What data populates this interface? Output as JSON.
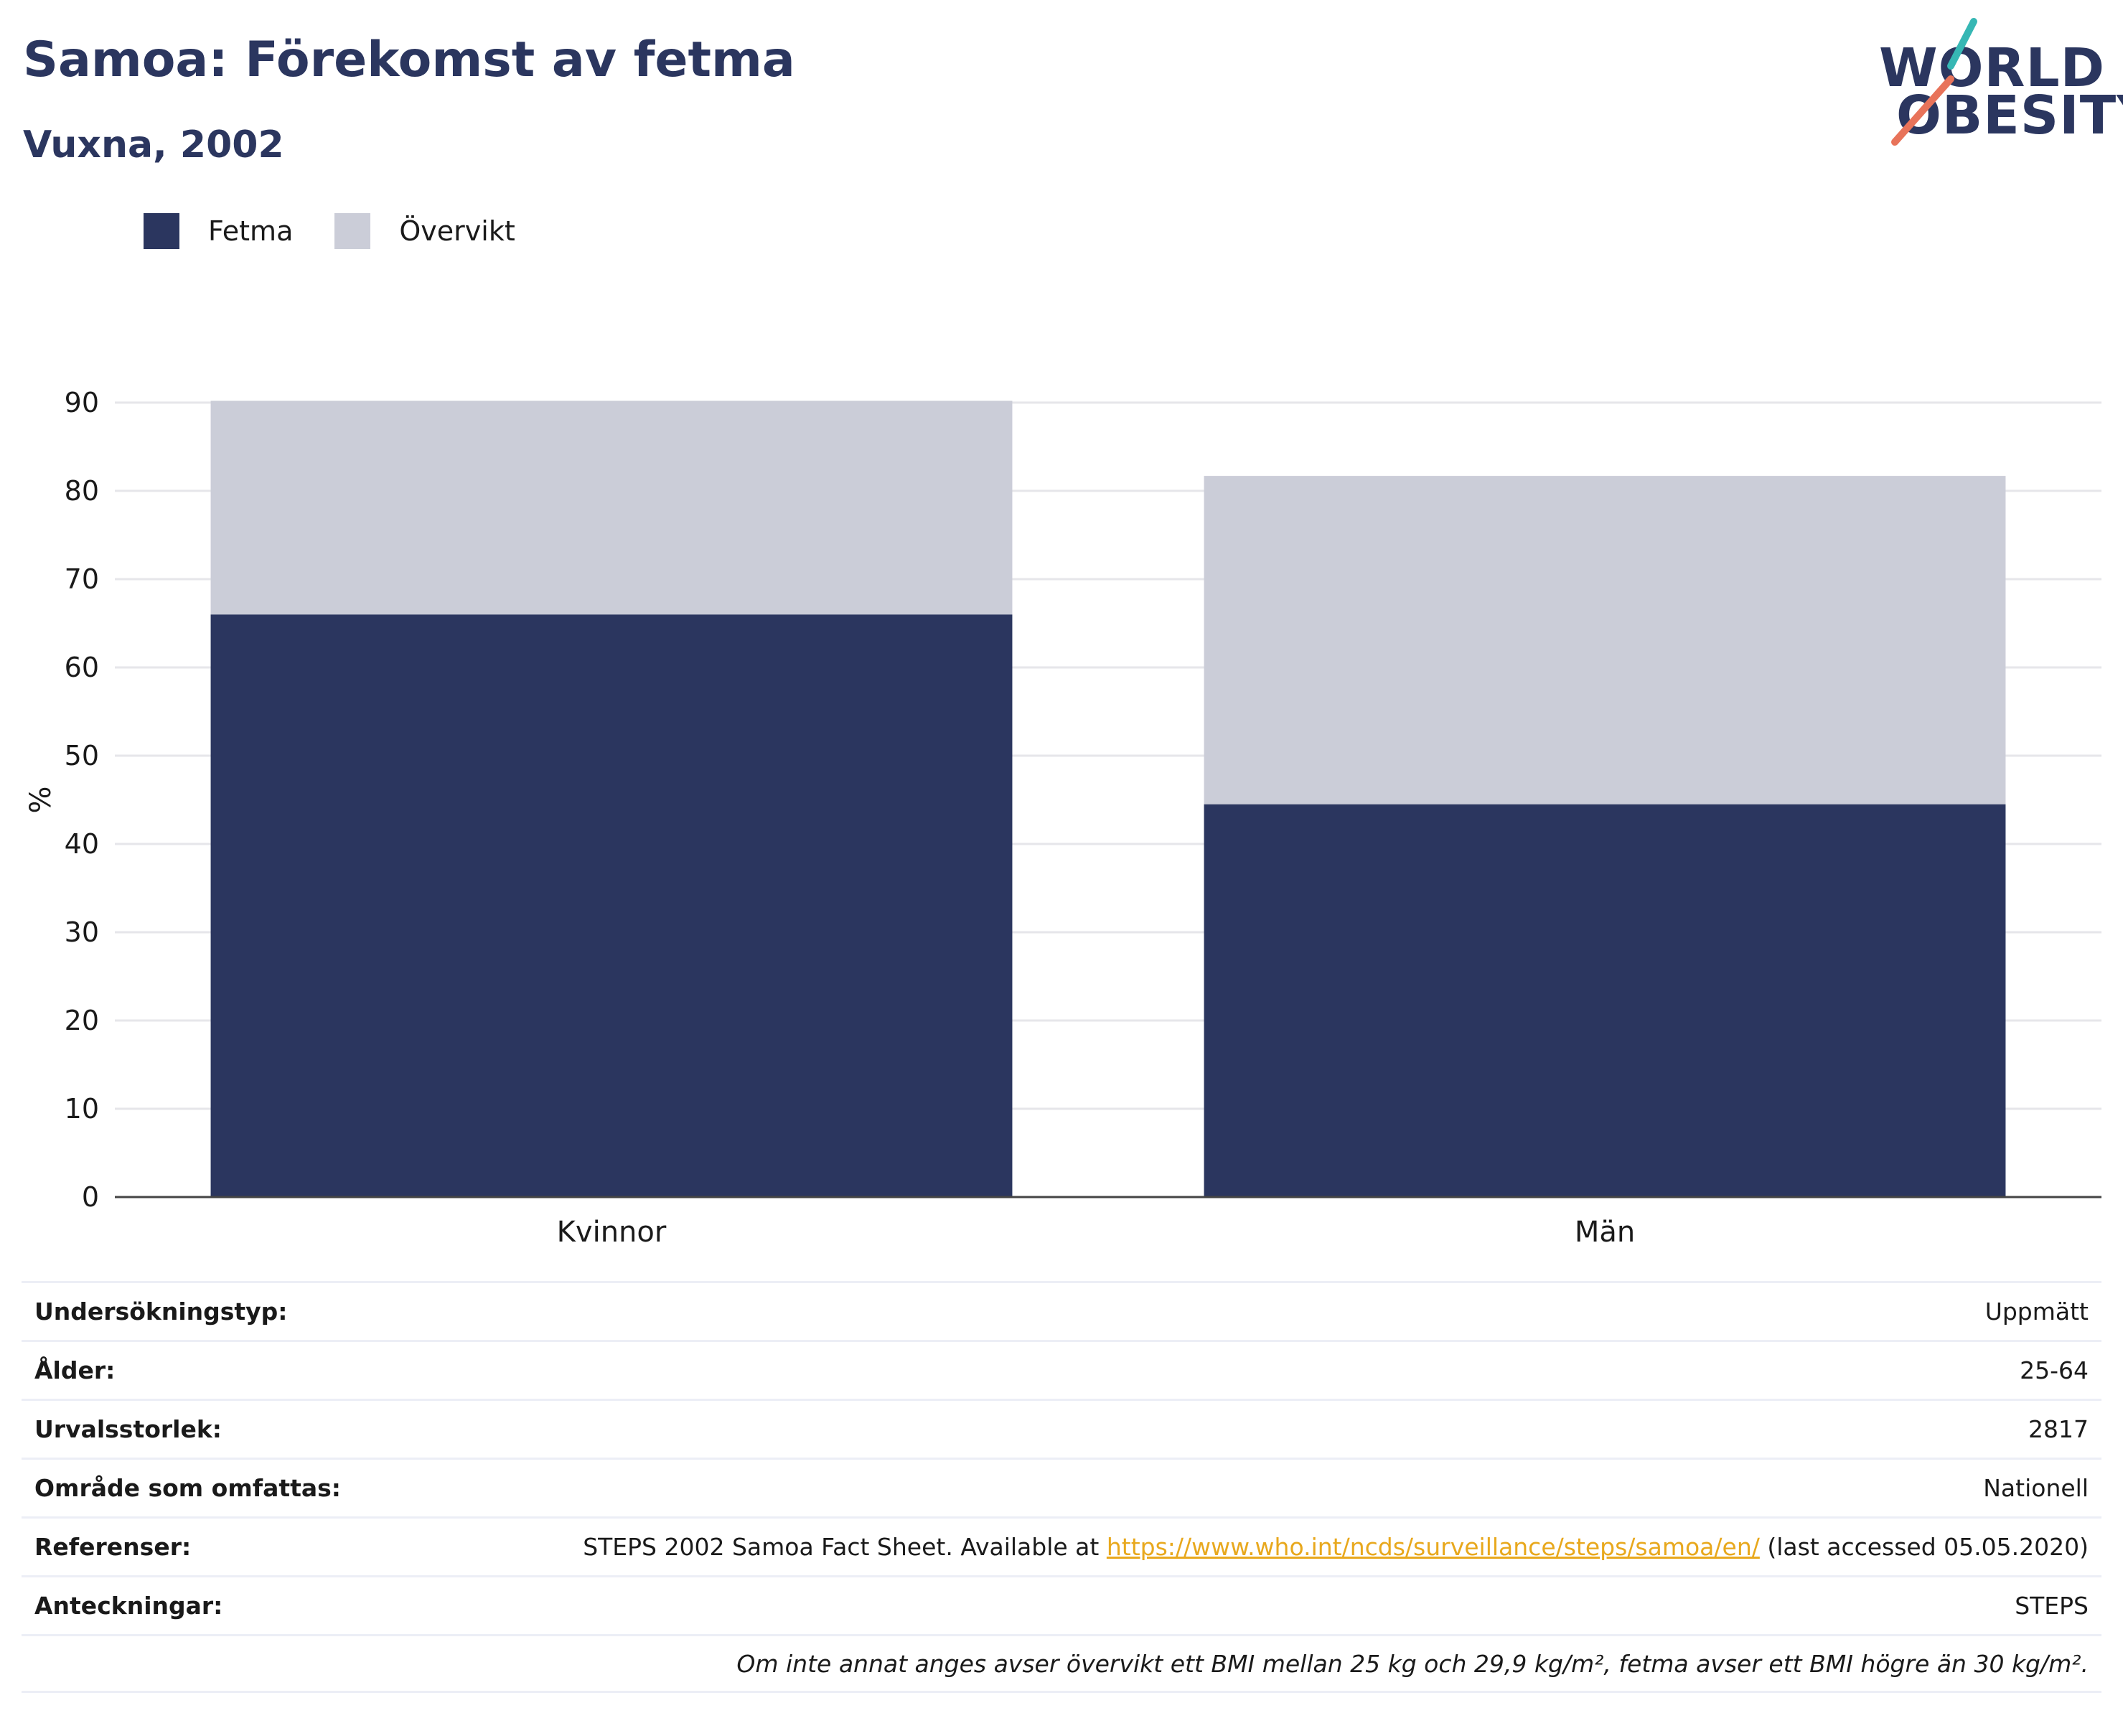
{
  "header": {
    "title": "Samoa: Förekomst av fetma",
    "subtitle": "Vuxna, 2002"
  },
  "logo": {
    "line1": "WORLD",
    "line2": "OBESITY",
    "colors": {
      "text": "#2b365f",
      "slash_top": "#36b7b4",
      "slash_bottom": "#e8735a"
    }
  },
  "legend": [
    {
      "label": "Fetma",
      "color": "#2b365f"
    },
    {
      "label": "Övervikt",
      "color": "#cbcdd8"
    }
  ],
  "chart_data": {
    "type": "bar",
    "stacked": true,
    "categories": [
      "Kvinnor",
      "Män"
    ],
    "series": [
      {
        "name": "Fetma",
        "color": "#2b365f",
        "values": [
          66.0,
          44.5
        ]
      },
      {
        "name": "Övervikt",
        "color": "#cbcdd8",
        "values": [
          24.2,
          37.2
        ]
      }
    ],
    "ylabel": "%",
    "ylim": [
      0,
      90
    ],
    "yticks": [
      0,
      10,
      20,
      30,
      40,
      50,
      60,
      70,
      80,
      90
    ],
    "grid": true
  },
  "info": {
    "rows": [
      {
        "key": "Undersökningstyp:",
        "value": "Uppmätt"
      },
      {
        "key": "Ålder:",
        "value": "25-64"
      },
      {
        "key": "Urvalsstorlek:",
        "value": "2817"
      },
      {
        "key": "Område som omfattas:",
        "value": "Nationell"
      }
    ],
    "references": {
      "key": "Referenser:",
      "prefix": "STEPS 2002 Samoa Fact Sheet. Available at ",
      "link": "https://www.who.int/ncds/surveillance/steps/samoa/en/",
      "suffix": " (last accessed 05.05.2020)"
    },
    "notes": {
      "key": "Anteckningar:",
      "value": "STEPS"
    },
    "footnote": "Om inte annat anges avser övervikt ett BMI mellan 25 kg och 29,9 kg/m², fetma avser ett BMI högre än 30 kg/m²."
  }
}
